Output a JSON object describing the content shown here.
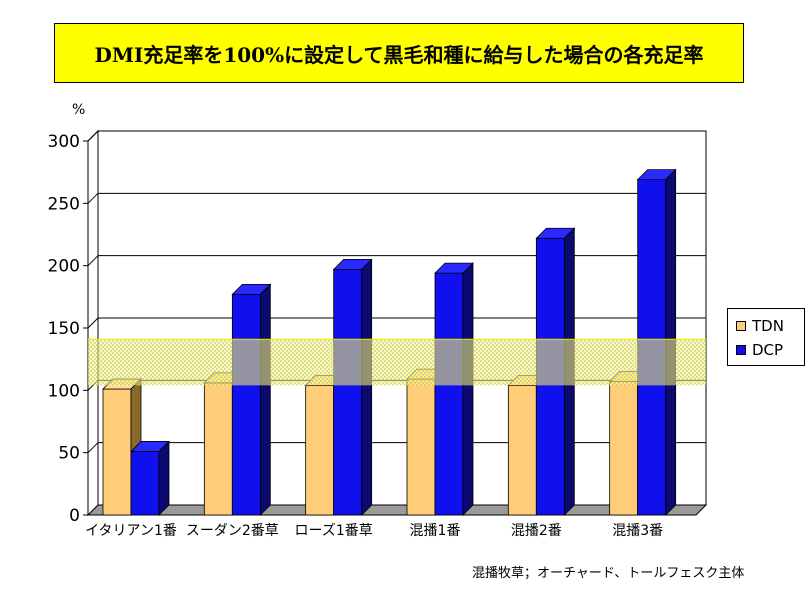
{
  "title": "DMI充足率を100%に設定して黒毛和種に給与した場合の各充足率",
  "unit_label": "%",
  "footnote": "混播牧草；オーチャード、トールフェスク主体",
  "colors": {
    "tdn": "#ffcc77",
    "dcp": "#1010ee",
    "band": "#ffff66",
    "title_bg": "#ffff00"
  },
  "legend": [
    {
      "name": "TDN",
      "color": "#ffcc77"
    },
    {
      "name": "DCP",
      "color": "#1010ee"
    }
  ],
  "chart_data": {
    "type": "bar",
    "title": "DMI充足率を100%に設定して黒毛和種に給与した場合の各充足率",
    "ylabel": "%",
    "xlabel": "",
    "ylim": [
      0,
      300
    ],
    "yticks": [
      0,
      50,
      100,
      150,
      200,
      250,
      300
    ],
    "grid": true,
    "legend_position": "right",
    "categories": [
      "イタリアン1番",
      "スーダン2番草",
      "ローズ1番草",
      "混播1番",
      "混播2番",
      "混播3番"
    ],
    "series": [
      {
        "name": "TDN",
        "values": [
          101,
          106,
          104,
          109,
          104,
          107
        ]
      },
      {
        "name": "DCP",
        "values": [
          51,
          177,
          197,
          194,
          222,
          269
        ]
      }
    ],
    "highlight_band": [
      100,
      137
    ]
  }
}
